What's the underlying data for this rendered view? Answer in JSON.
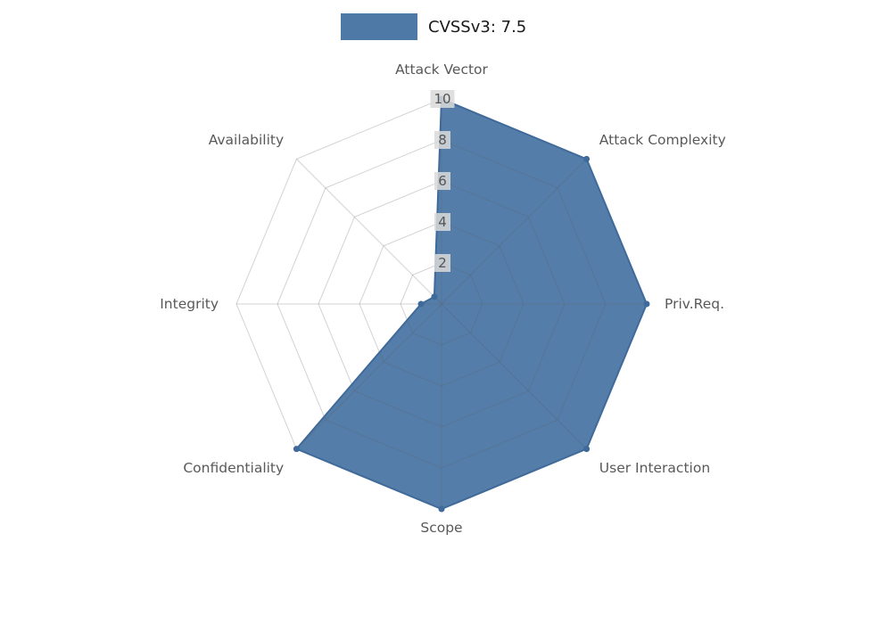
{
  "legend": {
    "label": "CVSSv3: 7.5"
  },
  "colors": {
    "fill": "#4e79a7",
    "line": "#3f6a99",
    "marker": "#3f6a99",
    "grid": "#606060",
    "axis_label": "#595959",
    "tick_label": "#555555",
    "tick_box": "#d9d9d9",
    "legend_text": "#1a1a1a",
    "background": "#ffffff"
  },
  "chart_data": {
    "type": "radar",
    "title": "CVSSv3: 7.5",
    "categories": [
      "Attack Vector",
      "Attack Complexity",
      "Priv.Req.",
      "User Interaction",
      "Scope",
      "Confidentiality",
      "Integrity",
      "Availability"
    ],
    "values": [
      10,
      10,
      10,
      10,
      10,
      10,
      1,
      0.5
    ],
    "ticks": [
      2,
      4,
      6,
      8,
      10
    ],
    "rmin": 0,
    "rmax": 10,
    "grid": true,
    "legend_position": "top-center",
    "start_axis": "top",
    "direction": "clockwise"
  }
}
